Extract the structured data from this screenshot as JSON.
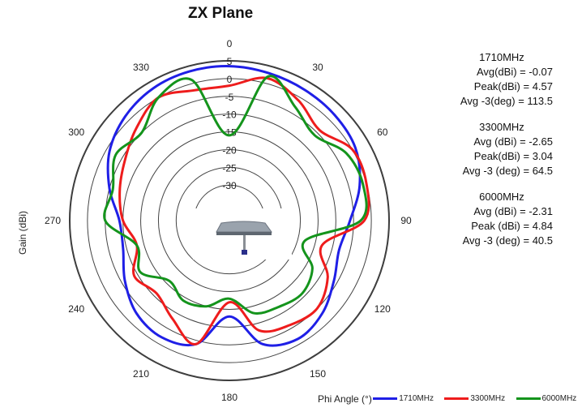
{
  "chart_data": {
    "type": "polar-line",
    "title": "ZX Plane",
    "ylabel": "Gain (dBi)",
    "xlabel": "Phi Angle (°)",
    "r_range": [
      -40,
      5
    ],
    "r_ticks": [
      5,
      0,
      -5,
      -10,
      -15,
      -20,
      -25,
      -30
    ],
    "angle_ticks": [
      0,
      30,
      60,
      90,
      120,
      150,
      180,
      210,
      240,
      270,
      300,
      330
    ],
    "theta": [
      0,
      15,
      30,
      45,
      60,
      75,
      90,
      105,
      120,
      135,
      150,
      165,
      180,
      195,
      210,
      225,
      240,
      255,
      270,
      285,
      300,
      315,
      330,
      345
    ],
    "colors": {
      "1710MHz": "#1f1fe6",
      "3300MHz": "#ee1c1c",
      "6000MHz": "#14941c"
    },
    "series": [
      {
        "name": "1710MHz",
        "values": [
          3.5,
          3.0,
          2.5,
          2.0,
          1.0,
          -2.0,
          -6.0,
          -8.0,
          -6.0,
          -3.0,
          -1.5,
          -4.0,
          -13.0,
          -4.0,
          -2.0,
          -3.0,
          -6.0,
          -9.0,
          -9.0,
          -5.0,
          -1.0,
          1.5,
          3.0,
          3.5
        ]
      },
      {
        "name": "3300MHz",
        "values": [
          -2.0,
          1.5,
          -1.0,
          -4.0,
          0.0,
          0.0,
          -2.0,
          -13.0,
          -8.0,
          -5.0,
          -6.0,
          -8.0,
          -17.0,
          -4.0,
          -8.0,
          -11.0,
          -9.0,
          -13.0,
          -10.0,
          -8.0,
          -6.0,
          -3.0,
          0.0,
          -2.0
        ]
      },
      {
        "name": "6000MHz",
        "values": [
          -16.0,
          2.0,
          -3.0,
          -6.0,
          -2.0,
          -1.0,
          -3.0,
          -18.0,
          -13.0,
          -11.0,
          -12.0,
          -13.0,
          -18.0,
          -15.0,
          -14.0,
          -16.0,
          -11.0,
          -13.0,
          -5.0,
          -6.0,
          -3.0,
          -5.0,
          0.0,
          1.0
        ]
      }
    ],
    "stats": [
      {
        "title": "1710MHz",
        "lines": [
          "Avg(dBi) = -0.07",
          "Peak(dBi) = 4.57",
          "Avg -3(deg) = 113.5"
        ]
      },
      {
        "title": "3300MHz",
        "lines": [
          "Avg (dBi) =  -2.65",
          "Peak(dBi) =  3.04",
          "Avg -3 (deg) =  64.5"
        ]
      },
      {
        "title": "6000MHz",
        "lines": [
          "Avg (dBi) = -2.31",
          "Peak (dBi) = 4.84",
          "Avg -3 (deg) = 40.5"
        ]
      }
    ],
    "legend": {
      "title": "Phi Angle (°)",
      "items": [
        "1710MHz",
        "3300MHz",
        "6000MHz"
      ]
    }
  }
}
